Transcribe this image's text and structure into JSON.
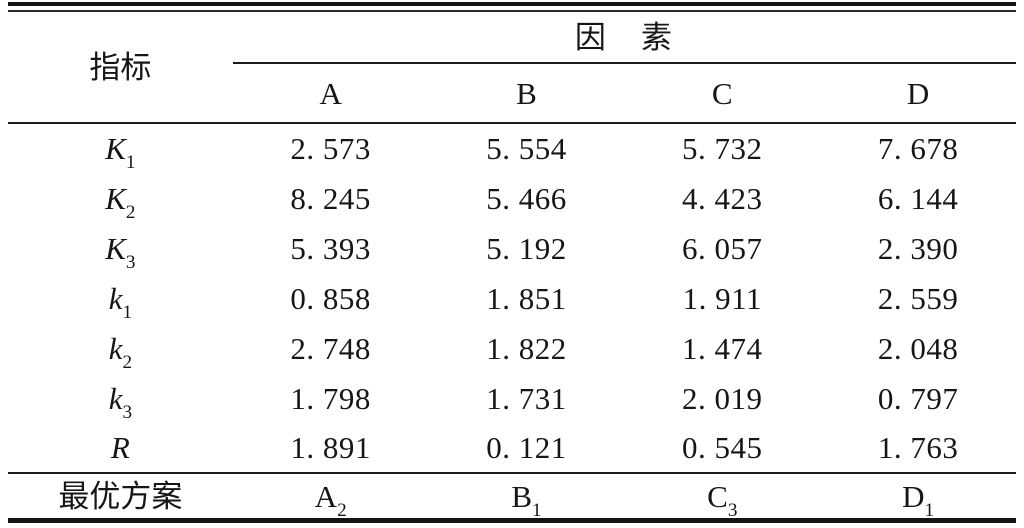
{
  "table": {
    "indicator_header": "指标",
    "col_group_header": "因　素",
    "factor_columns": [
      "A",
      "B",
      "C",
      "D"
    ],
    "rows": [
      {
        "base": "K",
        "sub": "1",
        "values": [
          "2. 573",
          "5. 554",
          "5. 732",
          "7. 678"
        ]
      },
      {
        "base": "K",
        "sub": "2",
        "values": [
          "8. 245",
          "5. 466",
          "4. 423",
          "6. 144"
        ]
      },
      {
        "base": "K",
        "sub": "3",
        "values": [
          "5. 393",
          "5. 192",
          "6. 057",
          "2. 390"
        ]
      },
      {
        "base": "k",
        "sub": "1",
        "values": [
          "0. 858",
          "1. 851",
          "1. 911",
          "2. 559"
        ]
      },
      {
        "base": "k",
        "sub": "2",
        "values": [
          "2. 748",
          "1. 822",
          "1. 474",
          "2. 048"
        ]
      },
      {
        "base": "k",
        "sub": "3",
        "values": [
          "1. 798",
          "1. 731",
          "2. 019",
          "0. 797"
        ]
      },
      {
        "base": "R",
        "sub": "",
        "values": [
          "1. 891",
          "0. 121",
          "0. 545",
          "1. 763"
        ]
      }
    ],
    "optimal_row": {
      "label": "最优方案",
      "values": [
        {
          "base": "A",
          "sub": "2"
        },
        {
          "base": "B",
          "sub": "1"
        },
        {
          "base": "C",
          "sub": "3"
        },
        {
          "base": "D",
          "sub": "1"
        }
      ]
    },
    "colors": {
      "rule": "#141414",
      "text": "#161616",
      "background": "#ffffff"
    }
  }
}
